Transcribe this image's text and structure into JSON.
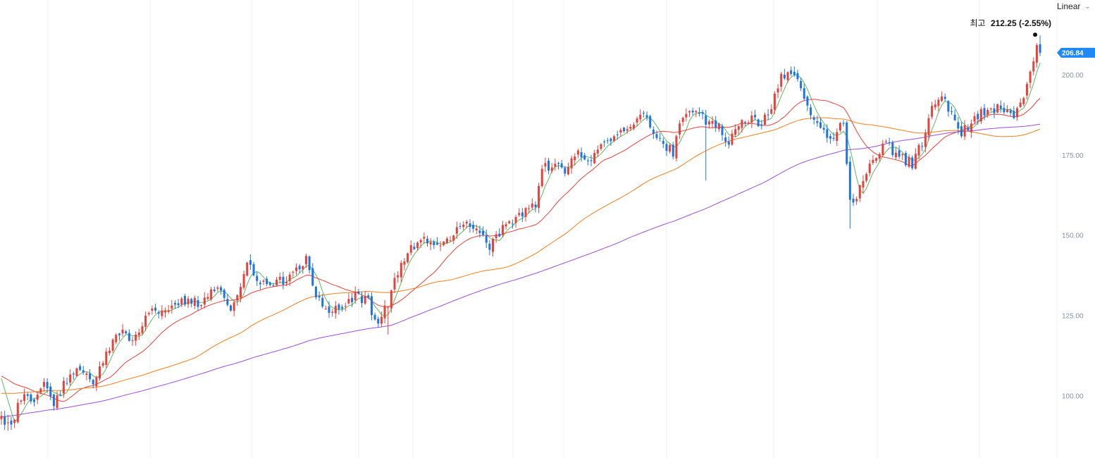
{
  "toolbar": {
    "scale_label": "Linear",
    "chevron_icon": "chevron-down-icon"
  },
  "colors": {
    "up": "#e8413a",
    "down": "#1e74e3",
    "ma5": "#5cb85c",
    "ma20": "#e8413a",
    "ma60": "#f07f1b",
    "ma120": "#9b4fd6",
    "badge": "#1e88f5",
    "grid": "#f0f1f3"
  },
  "chart_data": {
    "type": "candlestick",
    "title": "",
    "xlabel": "",
    "ylabel": "",
    "ylim": [
      80,
      221
    ],
    "y_ticks": [
      {
        "value": 100,
        "label": "100.00"
      },
      {
        "value": 125,
        "label": "125.00"
      },
      {
        "value": 150,
        "label": "150.00"
      },
      {
        "value": 175,
        "label": "175.00"
      },
      {
        "value": 200,
        "label": "200.00"
      }
    ],
    "grid": "vertical",
    "current_price": {
      "value": 206.84,
      "label": "206.84"
    },
    "high_annotation": {
      "prefix": "최고",
      "value": 212.25,
      "label": "212.25 (-2.55%)"
    },
    "keypoints": [
      [
        0,
        93
      ],
      [
        3,
        91
      ],
      [
        6,
        100
      ],
      [
        10,
        98
      ],
      [
        13,
        103
      ],
      [
        16,
        98
      ],
      [
        20,
        105
      ],
      [
        24,
        108
      ],
      [
        28,
        103
      ],
      [
        32,
        113
      ],
      [
        36,
        120
      ],
      [
        40,
        118
      ],
      [
        45,
        126
      ],
      [
        50,
        125
      ],
      [
        55,
        130
      ],
      [
        60,
        129
      ],
      [
        63,
        131
      ],
      [
        66,
        135
      ],
      [
        70,
        128
      ],
      [
        73,
        133
      ],
      [
        75,
        141
      ],
      [
        79,
        136
      ],
      [
        82,
        134
      ],
      [
        86,
        136
      ],
      [
        90,
        139
      ],
      [
        93,
        143
      ],
      [
        96,
        131
      ],
      [
        100,
        127
      ],
      [
        104,
        126
      ],
      [
        108,
        131
      ],
      [
        112,
        129
      ],
      [
        115,
        122
      ],
      [
        118,
        129
      ],
      [
        121,
        139
      ],
      [
        125,
        146
      ],
      [
        129,
        148
      ],
      [
        133,
        147
      ],
      [
        137,
        149
      ],
      [
        141,
        154
      ],
      [
        146,
        152
      ],
      [
        149,
        147
      ],
      [
        152,
        151
      ],
      [
        156,
        154
      ],
      [
        160,
        158
      ],
      [
        163,
        160
      ],
      [
        165,
        171
      ],
      [
        169,
        172
      ],
      [
        172,
        169
      ],
      [
        176,
        176
      ],
      [
        180,
        174
      ],
      [
        184,
        178
      ],
      [
        188,
        181
      ],
      [
        192,
        184
      ],
      [
        196,
        188
      ],
      [
        199,
        183
      ],
      [
        202,
        178
      ],
      [
        205,
        176
      ],
      [
        207,
        185
      ],
      [
        211,
        189
      ],
      [
        215,
        186
      ],
      [
        219,
        184
      ],
      [
        222,
        179
      ],
      [
        225,
        185
      ],
      [
        229,
        187
      ],
      [
        232,
        184
      ],
      [
        235,
        190
      ],
      [
        238,
        199
      ],
      [
        242,
        200
      ],
      [
        245,
        192
      ],
      [
        248,
        185
      ],
      [
        251,
        182
      ],
      [
        254,
        180
      ],
      [
        257,
        186
      ],
      [
        259,
        160
      ],
      [
        262,
        164
      ],
      [
        265,
        171
      ],
      [
        268,
        175
      ],
      [
        270,
        180
      ],
      [
        272,
        176
      ],
      [
        275,
        174
      ],
      [
        278,
        172
      ],
      [
        281,
        179
      ],
      [
        284,
        189
      ],
      [
        287,
        194
      ],
      [
        290,
        188
      ],
      [
        293,
        182
      ],
      [
        296,
        185
      ],
      [
        299,
        189
      ],
      [
        302,
        188
      ],
      [
        305,
        190
      ],
      [
        309,
        187
      ],
      [
        312,
        193
      ],
      [
        314,
        200
      ],
      [
        316,
        210
      ],
      [
        317,
        206.84
      ]
    ],
    "outliers": [
      [
        215,
        167,
        186
      ],
      [
        259,
        152,
        165
      ],
      [
        118,
        119,
        126
      ],
      [
        2,
        89,
        94
      ]
    ],
    "series": [
      {
        "name": "",
        "type": "moving-average",
        "period": 5,
        "color": "#5cb85c"
      },
      {
        "name": "",
        "type": "moving-average",
        "period": 20,
        "color": "#e8413a"
      },
      {
        "name": "",
        "type": "moving-average",
        "period": 60,
        "color": "#f07f1b"
      },
      {
        "name": "",
        "type": "moving-average",
        "period": 120,
        "color": "#9b4fd6"
      }
    ]
  }
}
